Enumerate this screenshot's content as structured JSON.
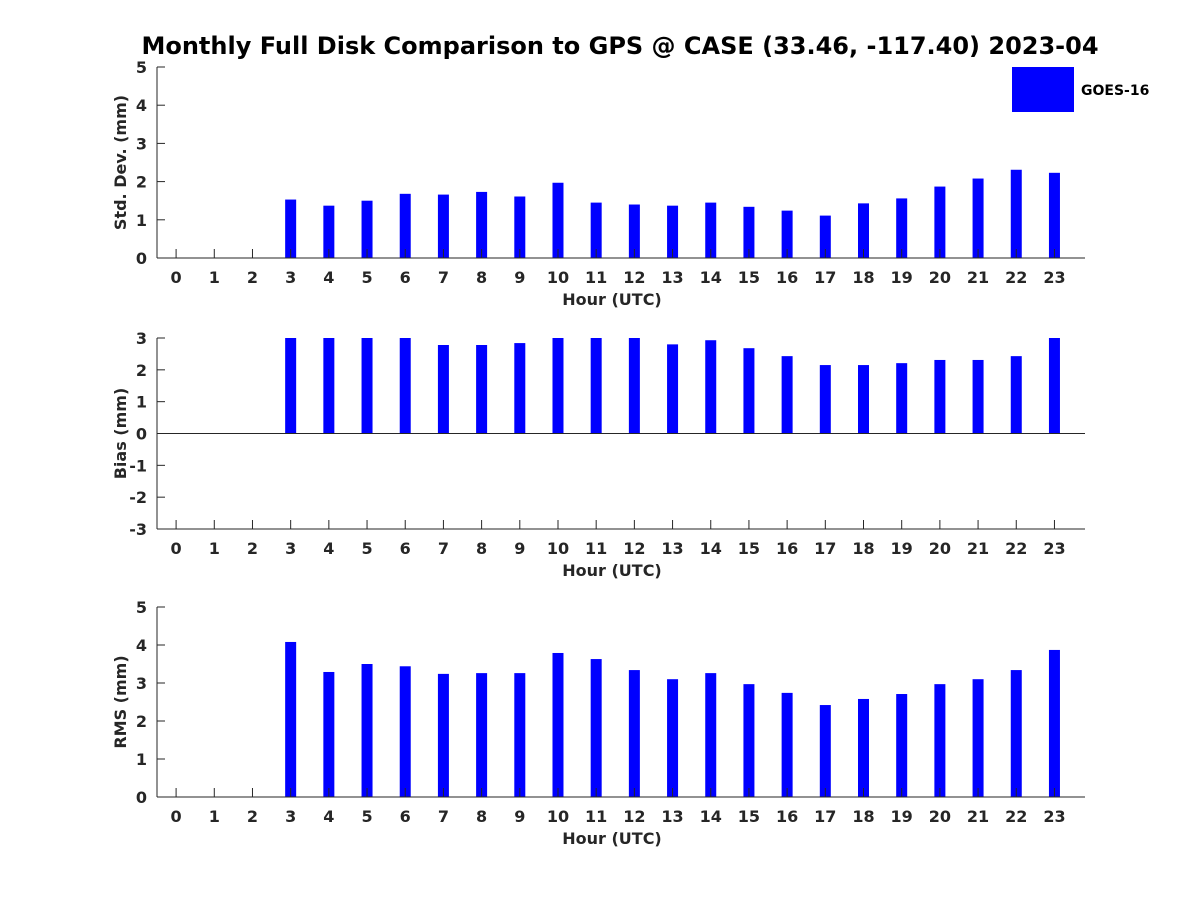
{
  "title": "Monthly Full Disk Comparison to GPS @ CASE (33.46, -117.40) 2023-04",
  "colors": {
    "bar": "#0000ff",
    "axis": "#262626",
    "background": "#ffffff"
  },
  "legend": {
    "label": "GOES-16",
    "placement": "top-right"
  },
  "chart_data": [
    {
      "type": "bar",
      "xlabel": "Hour (UTC)",
      "ylabel": "Std. Dev. (mm)",
      "ylim": [
        0,
        5
      ],
      "yticks": [
        0,
        1,
        2,
        3,
        4,
        5
      ],
      "categories": [
        "0",
        "1",
        "2",
        "3",
        "4",
        "5",
        "6",
        "7",
        "8",
        "9",
        "10",
        "11",
        "12",
        "13",
        "14",
        "15",
        "16",
        "17",
        "18",
        "19",
        "20",
        "21",
        "22",
        "23"
      ],
      "series": [
        {
          "name": "GOES-16",
          "values": [
            null,
            null,
            null,
            1.53,
            1.37,
            1.5,
            1.68,
            1.66,
            1.73,
            1.61,
            1.97,
            1.45,
            1.4,
            1.37,
            1.45,
            1.34,
            1.24,
            1.11,
            1.43,
            1.56,
            1.87,
            2.08,
            2.31,
            2.23
          ]
        }
      ]
    },
    {
      "type": "bar",
      "xlabel": "Hour (UTC)",
      "ylabel": "Bias (mm)",
      "ylim": [
        -3,
        3
      ],
      "yticks": [
        -3,
        -2,
        -1,
        0,
        1,
        2,
        3
      ],
      "categories": [
        "0",
        "1",
        "2",
        "3",
        "4",
        "5",
        "6",
        "7",
        "8",
        "9",
        "10",
        "11",
        "12",
        "13",
        "14",
        "15",
        "16",
        "17",
        "18",
        "19",
        "20",
        "21",
        "22",
        "23"
      ],
      "series": [
        {
          "name": "GOES-16",
          "values": [
            null,
            null,
            null,
            3.0,
            3.0,
            3.0,
            3.0,
            2.78,
            2.78,
            2.84,
            3.0,
            3.0,
            3.0,
            2.8,
            2.93,
            2.68,
            2.43,
            2.15,
            2.15,
            2.21,
            2.31,
            2.31,
            2.43,
            3.0
          ]
        }
      ]
    },
    {
      "type": "bar",
      "xlabel": "Hour (UTC)",
      "ylabel": "RMS (mm)",
      "ylim": [
        0,
        5
      ],
      "yticks": [
        0,
        1,
        2,
        3,
        4,
        5
      ],
      "categories": [
        "0",
        "1",
        "2",
        "3",
        "4",
        "5",
        "6",
        "7",
        "8",
        "9",
        "10",
        "11",
        "12",
        "13",
        "14",
        "15",
        "16",
        "17",
        "18",
        "19",
        "20",
        "21",
        "22",
        "23"
      ],
      "series": [
        {
          "name": "GOES-16",
          "values": [
            null,
            null,
            null,
            4.08,
            3.29,
            3.5,
            3.44,
            3.24,
            3.26,
            3.26,
            3.79,
            3.63,
            3.34,
            3.1,
            3.26,
            2.97,
            2.74,
            2.42,
            2.58,
            2.71,
            2.97,
            3.1,
            3.34,
            3.87
          ]
        }
      ]
    }
  ]
}
